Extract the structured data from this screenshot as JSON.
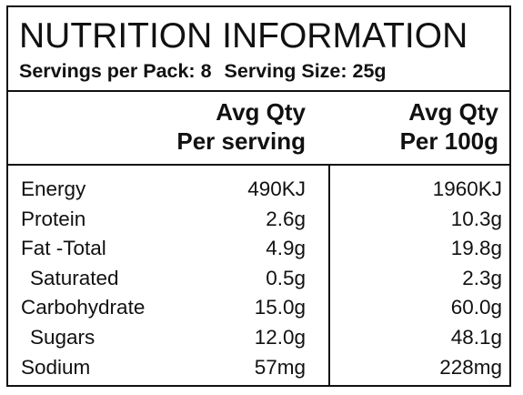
{
  "panel": {
    "title": "NUTRITION INFORMATION",
    "servings_per_pack": "Servings per Pack: 8",
    "serving_size": "Serving Size: 25g"
  },
  "columns": {
    "per_serving": [
      "Avg Qty",
      "Per serving"
    ],
    "per_100g": [
      "Avg Qty",
      "Per 100g"
    ]
  },
  "rows": [
    {
      "label": "Energy",
      "per_serving": "490KJ",
      "per_100g": "1960KJ",
      "indent": false
    },
    {
      "label": "Protein",
      "per_serving": "2.6g",
      "per_100g": "10.3g",
      "indent": false
    },
    {
      "label": "Fat -Total",
      "per_serving": "4.9g",
      "per_100g": "19.8g",
      "indent": false
    },
    {
      "label": "Saturated",
      "per_serving": "0.5g",
      "per_100g": "2.3g",
      "indent": true
    },
    {
      "label": "Carbohydrate",
      "per_serving": "15.0g",
      "per_100g": "60.0g",
      "indent": false
    },
    {
      "label": "Sugars",
      "per_serving": "12.0g",
      "per_100g": "48.1g",
      "indent": true
    },
    {
      "label": "Sodium",
      "per_serving": "57mg",
      "per_100g": "228mg",
      "indent": false
    }
  ]
}
